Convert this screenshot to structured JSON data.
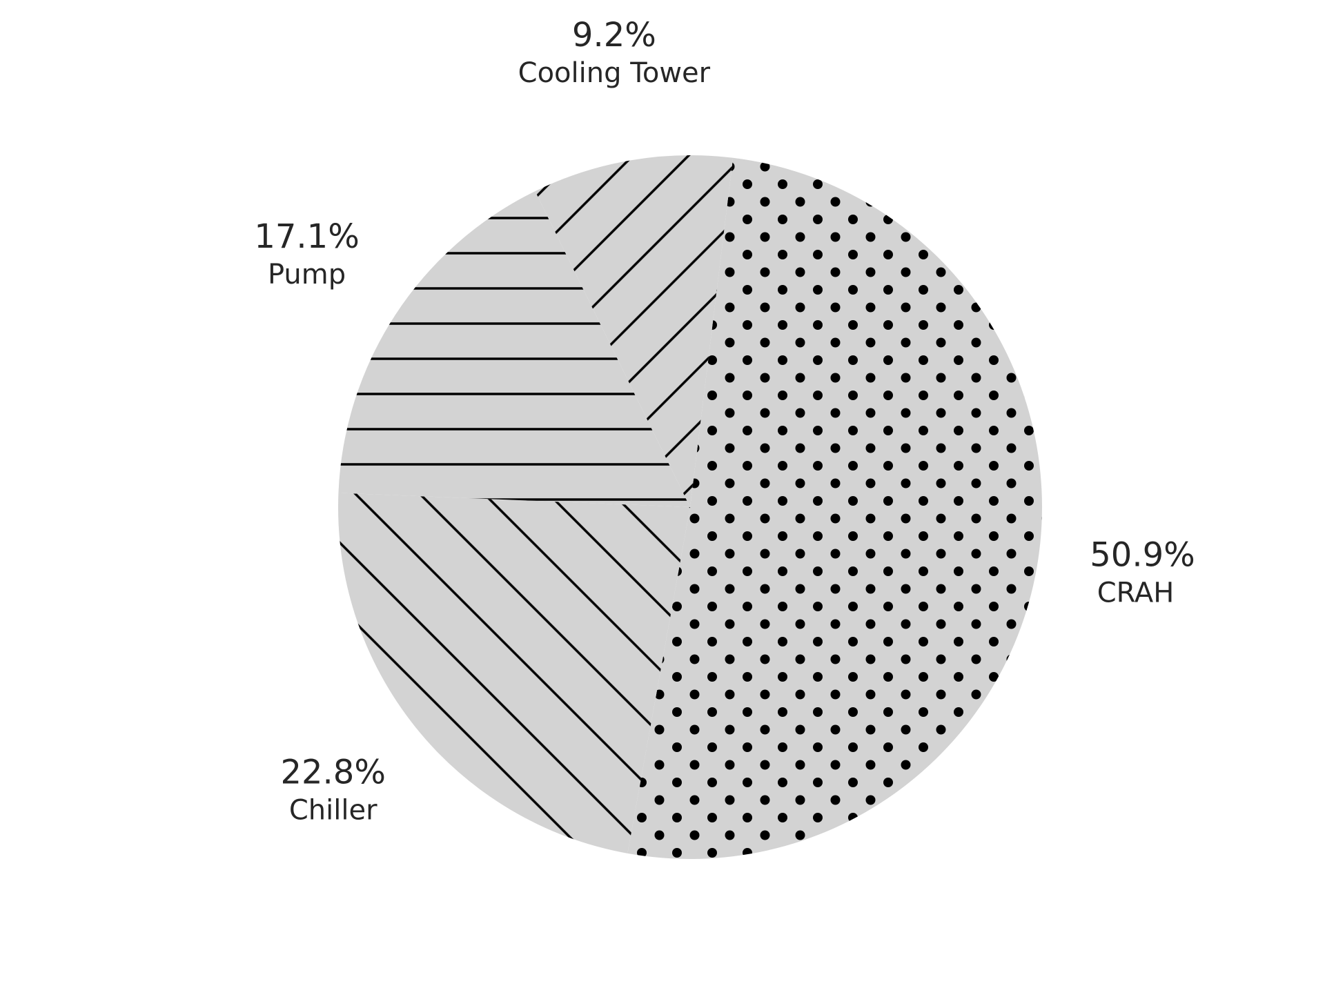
{
  "chart_data": {
    "type": "pie",
    "slices": [
      {
        "label": "CRAH",
        "value": 50.9,
        "value_label": "50.9%",
        "pattern": "dots"
      },
      {
        "label": "Chiller",
        "value": 22.8,
        "value_label": "22.8%",
        "pattern": "diagonal-down"
      },
      {
        "label": "Pump",
        "value": 17.1,
        "value_label": "17.1%",
        "pattern": "horizontal"
      },
      {
        "label": "Cooling Tower",
        "value": 9.2,
        "value_label": "9.2%",
        "pattern": "diagonal-up"
      }
    ],
    "start_angle_deg": 83,
    "direction": "clockwise",
    "legend": false,
    "colors": {
      "slice_fill": "#d3d3d3",
      "hatch": "#000000",
      "text": "#262626",
      "background": "#ffffff"
    }
  }
}
